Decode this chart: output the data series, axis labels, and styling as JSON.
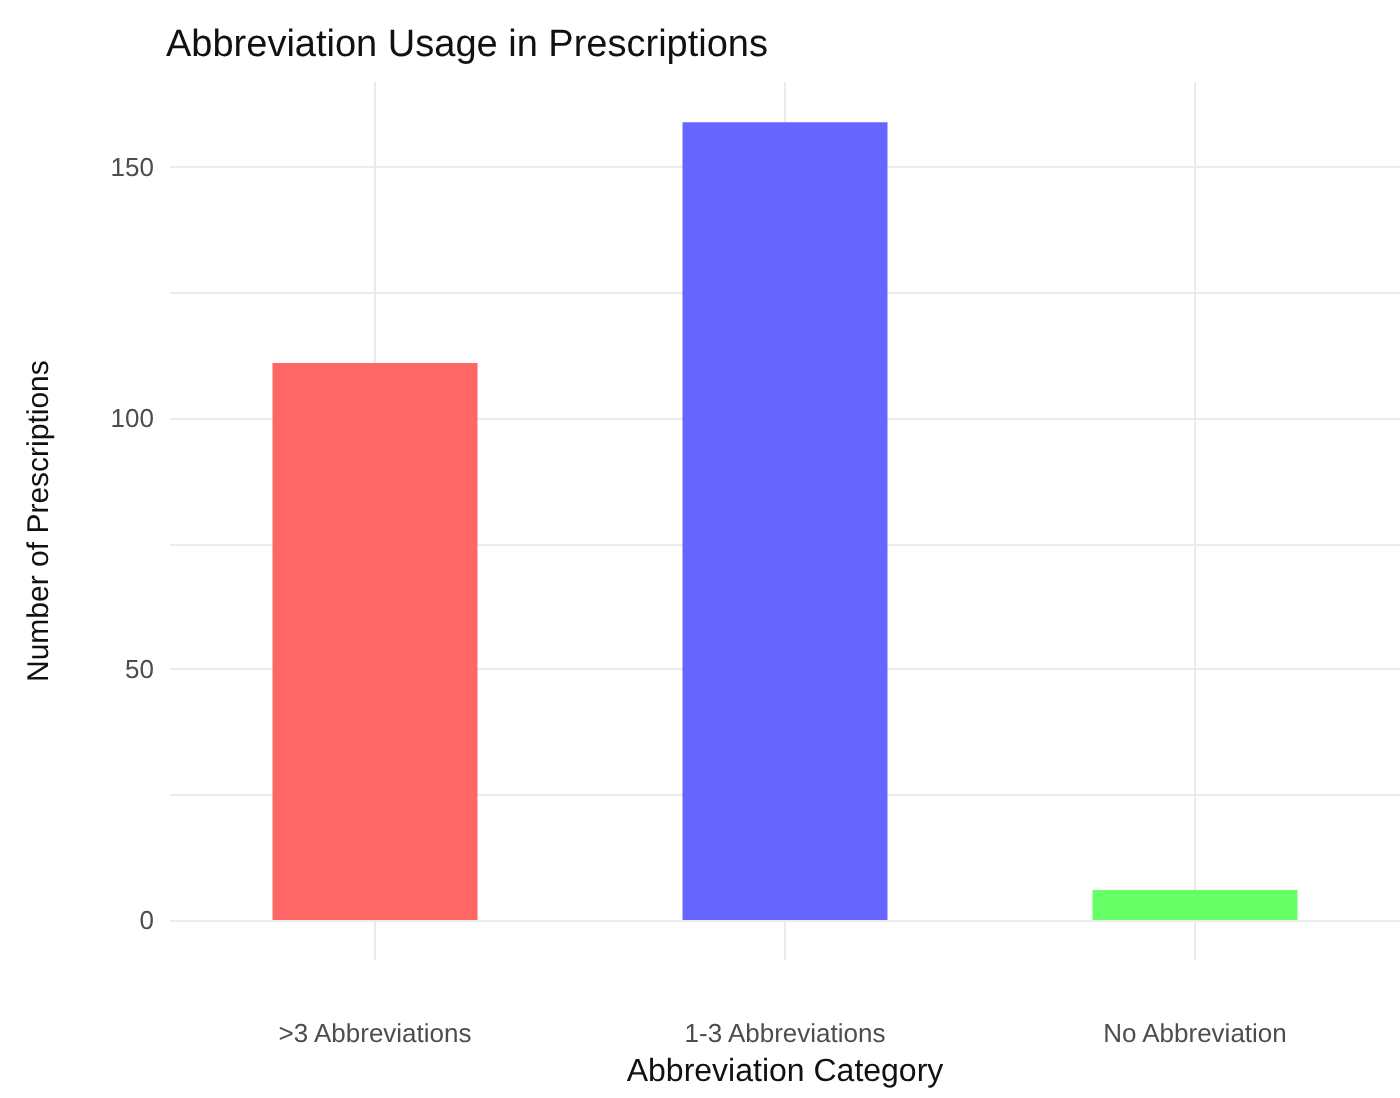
{
  "chart_data": {
    "type": "bar",
    "title": "Abbreviation Usage in Prescriptions",
    "xlabel": "Abbreviation Category",
    "ylabel": "Number of Prescriptions",
    "categories": [
      ">3 Abbreviations",
      "1-3 Abbreviations",
      "No Abbreviation"
    ],
    "values": [
      111,
      159,
      6
    ],
    "colors": [
      "#ff6666",
      "#6666ff",
      "#66ff66"
    ],
    "ylim": [
      -8,
      167
    ],
    "yticks": [
      0,
      {
        "value": 25,
        "label": null
      },
      50,
      {
        "value": 75,
        "label": null
      },
      100,
      {
        "value": 125,
        "label": null
      },
      150
    ],
    "grid": true
  }
}
